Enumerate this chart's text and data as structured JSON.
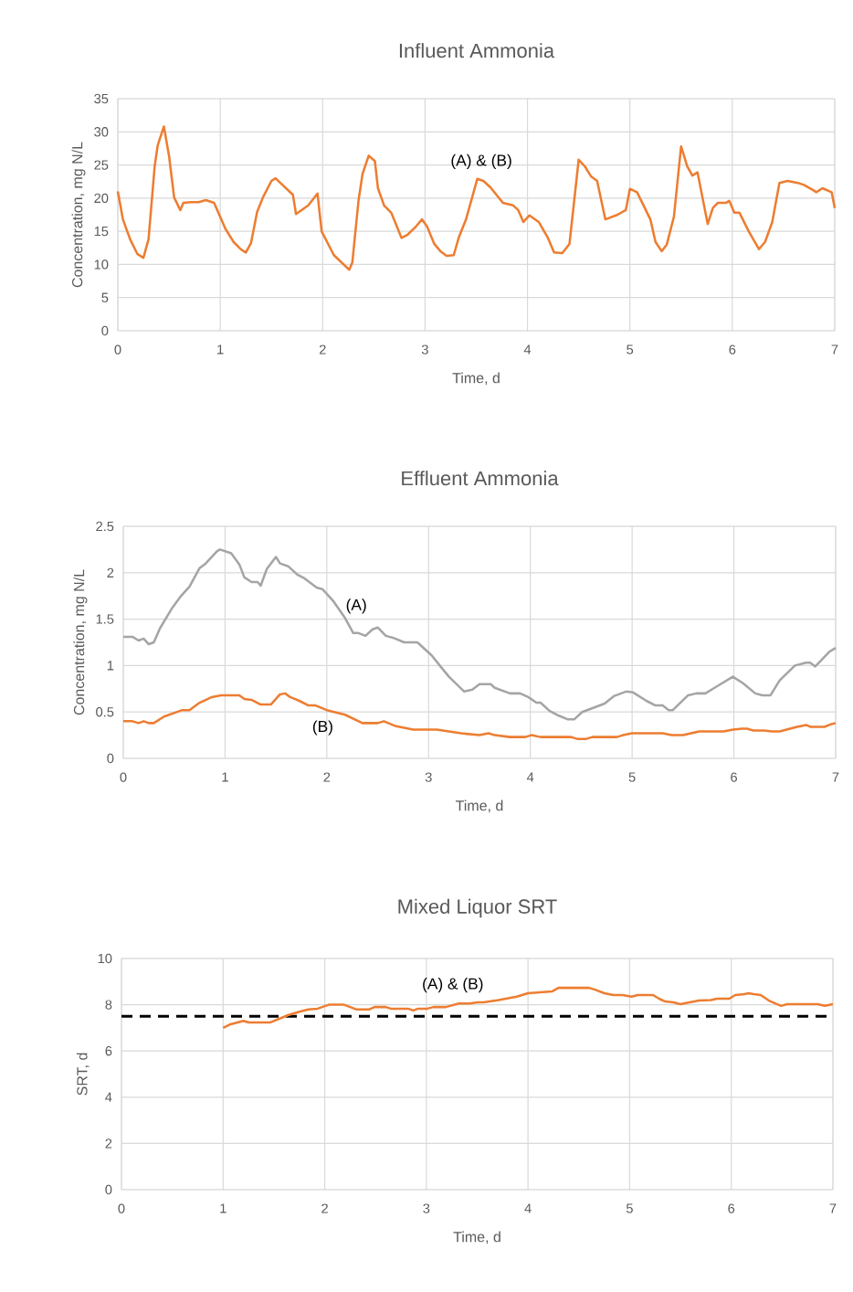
{
  "chart_data": [
    {
      "type": "line",
      "title": "Influent Ammonia",
      "xlabel": "Time, d",
      "ylabel": "Concentration, mg N/L",
      "xlim": [
        0,
        7
      ],
      "ylim": [
        0,
        35
      ],
      "xticks": [
        0,
        1,
        2,
        3,
        4,
        5,
        6,
        7
      ],
      "yticks": [
        0,
        5,
        10,
        15,
        20,
        25,
        30,
        35
      ],
      "grid": true,
      "series": [
        {
          "name": "(A)  & (B)",
          "color": "#ed7d31",
          "x": [
            0,
            0.05,
            0.12,
            0.19,
            0.25,
            0.3,
            0.36,
            0.39,
            0.45,
            0.5,
            0.55,
            0.61,
            0.64,
            0.71,
            0.79,
            0.86,
            0.94,
            1.05,
            1.13,
            1.2,
            1.25,
            1.3,
            1.36,
            1.42,
            1.5,
            1.54,
            1.71,
            1.74,
            1.86,
            1.95,
            1.99,
            2.11,
            2.26,
            2.29,
            2.35,
            2.39,
            2.45,
            2.51,
            2.54,
            2.6,
            2.67,
            2.71,
            2.77,
            2.83,
            2.91,
            2.97,
            3.02,
            3.09,
            3.15,
            3.21,
            3.28,
            3.33,
            3.4,
            3.51,
            3.57,
            3.64,
            3.76,
            3.86,
            3.91,
            3.96,
            4.02,
            4.11,
            4.2,
            4.26,
            4.34,
            4.41,
            4.5,
            4.56,
            4.62,
            4.68,
            4.76,
            4.88,
            4.96,
            5.0,
            5.07,
            5.2,
            5.25,
            5.31,
            5.36,
            5.43,
            5.5,
            5.56,
            5.61,
            5.66,
            5.76,
            5.81,
            5.86,
            5.94,
            5.97,
            6.02,
            6.07,
            6.16,
            6.26,
            6.32,
            6.39,
            6.46,
            6.54,
            6.64,
            6.7,
            6.79,
            6.82,
            6.88,
            6.97,
            7.0
          ],
          "values": [
            21,
            16.8,
            13.8,
            11.6,
            11,
            13.8,
            24.8,
            28,
            30.8,
            26.4,
            20.1,
            18.2,
            19.3,
            19.4,
            19.4,
            19.7,
            19.3,
            15.4,
            13.4,
            12.3,
            11.8,
            13.2,
            17.9,
            20.2,
            22.6,
            23,
            20.5,
            17.6,
            18.9,
            20.7,
            15,
            11.4,
            9.2,
            10.3,
            19.6,
            23.7,
            26.4,
            25.6,
            21.5,
            18.9,
            17.8,
            16.3,
            14,
            14.5,
            15.7,
            16.8,
            15.7,
            13.1,
            12,
            11.3,
            11.4,
            14.1,
            16.8,
            22.9,
            22.6,
            21.6,
            19.3,
            18.9,
            18.2,
            16.4,
            17.4,
            16.4,
            14,
            11.8,
            11.7,
            13.1,
            25.8,
            24.8,
            23.3,
            22.6,
            16.8,
            17.5,
            18.2,
            21.4,
            20.9,
            16.8,
            13.4,
            12,
            13,
            17.2,
            27.8,
            24.8,
            23.4,
            23.9,
            16.1,
            18.5,
            19.3,
            19.3,
            19.6,
            17.8,
            17.8,
            15,
            12.3,
            13.4,
            16.4,
            22.3,
            22.6,
            22.3,
            22,
            21.2,
            20.9,
            21.5,
            20.9,
            18.5
          ]
        }
      ]
    },
    {
      "type": "line",
      "title": "Effluent Ammonia",
      "xlabel": "Time, d",
      "ylabel": "Concentration, mg N/L",
      "xlim": [
        0,
        7
      ],
      "ylim": [
        0,
        2.5
      ],
      "xticks": [
        0,
        1,
        2,
        3,
        4,
        5,
        6,
        7
      ],
      "yticks": [
        0,
        0.5,
        1,
        1.5,
        2,
        2.5
      ],
      "grid": true,
      "series": [
        {
          "name": "(A)",
          "color": "#a5a5a5",
          "x": [
            0,
            0.09,
            0.15,
            0.2,
            0.25,
            0.3,
            0.36,
            0.48,
            0.56,
            0.65,
            0.75,
            0.81,
            0.92,
            0.95,
            1.06,
            1.14,
            1.19,
            1.26,
            1.32,
            1.35,
            1.41,
            1.5,
            1.54,
            1.62,
            1.71,
            1.78,
            1.9,
            1.96,
            2.06,
            2.18,
            2.26,
            2.31,
            2.38,
            2.45,
            2.5,
            2.58,
            2.65,
            2.76,
            2.89,
            3.03,
            3.11,
            3.2,
            3.35,
            3.43,
            3.5,
            3.61,
            3.65,
            3.8,
            3.9,
            3.98,
            4.06,
            4.1,
            4.19,
            4.28,
            4.37,
            4.43,
            4.51,
            4.73,
            4.82,
            4.94,
            5.01,
            5.14,
            5.23,
            5.3,
            5.36,
            5.4,
            5.55,
            5.63,
            5.72,
            5.81,
            5.9,
            5.99,
            6.09,
            6.21,
            6.28,
            6.36,
            6.45,
            6.6,
            6.71,
            6.75,
            6.8,
            6.94,
            7.0
          ],
          "values": [
            1.31,
            1.31,
            1.27,
            1.29,
            1.23,
            1.25,
            1.4,
            1.62,
            1.74,
            1.85,
            2.05,
            2.1,
            2.23,
            2.25,
            2.21,
            2.09,
            1.95,
            1.9,
            1.9,
            1.86,
            2.04,
            2.17,
            2.1,
            2.07,
            1.98,
            1.94,
            1.84,
            1.82,
            1.7,
            1.51,
            1.35,
            1.35,
            1.32,
            1.39,
            1.41,
            1.32,
            1.3,
            1.25,
            1.25,
            1.11,
            1.0,
            0.88,
            0.72,
            0.74,
            0.8,
            0.8,
            0.76,
            0.7,
            0.7,
            0.66,
            0.6,
            0.6,
            0.51,
            0.46,
            0.42,
            0.42,
            0.5,
            0.59,
            0.67,
            0.72,
            0.71,
            0.62,
            0.57,
            0.57,
            0.52,
            0.52,
            0.68,
            0.7,
            0.7,
            0.76,
            0.82,
            0.88,
            0.81,
            0.7,
            0.68,
            0.68,
            0.84,
            1.0,
            1.03,
            1.03,
            0.99,
            1.15,
            1.19
          ]
        },
        {
          "name": "(B)",
          "color": "#ed7d31",
          "x": [
            0,
            0.09,
            0.15,
            0.2,
            0.25,
            0.3,
            0.4,
            0.58,
            0.65,
            0.75,
            0.87,
            0.96,
            1.14,
            1.19,
            1.26,
            1.35,
            1.45,
            1.54,
            1.59,
            1.64,
            1.73,
            1.82,
            1.89,
            2.0,
            2.18,
            2.35,
            2.5,
            2.56,
            2.67,
            2.85,
            3.08,
            3.32,
            3.5,
            3.59,
            3.65,
            3.8,
            3.95,
            4.01,
            4.1,
            4.4,
            4.46,
            4.55,
            4.61,
            4.85,
            4.91,
            5.0,
            5.3,
            5.39,
            5.5,
            5.66,
            5.9,
            5.99,
            6.08,
            6.13,
            6.19,
            6.3,
            6.37,
            6.45,
            6.62,
            6.71,
            6.75,
            6.89,
            6.96,
            7.0
          ],
          "values": [
            0.4,
            0.4,
            0.38,
            0.4,
            0.38,
            0.38,
            0.45,
            0.52,
            0.52,
            0.6,
            0.66,
            0.68,
            0.68,
            0.64,
            0.63,
            0.58,
            0.58,
            0.69,
            0.7,
            0.66,
            0.62,
            0.57,
            0.57,
            0.52,
            0.47,
            0.38,
            0.38,
            0.4,
            0.35,
            0.31,
            0.31,
            0.27,
            0.25,
            0.27,
            0.25,
            0.23,
            0.23,
            0.25,
            0.23,
            0.23,
            0.21,
            0.21,
            0.23,
            0.23,
            0.25,
            0.27,
            0.27,
            0.25,
            0.25,
            0.29,
            0.29,
            0.31,
            0.32,
            0.32,
            0.3,
            0.3,
            0.29,
            0.29,
            0.34,
            0.36,
            0.34,
            0.34,
            0.37,
            0.38
          ]
        }
      ]
    },
    {
      "type": "line",
      "title": "Mixed Liquor SRT",
      "xlabel": "Time, d",
      "ylabel": "SRT, d",
      "xlim": [
        0,
        7
      ],
      "ylim": [
        0,
        10
      ],
      "xticks": [
        0,
        1,
        2,
        3,
        4,
        5,
        6,
        7
      ],
      "yticks": [
        0,
        2,
        4,
        6,
        8,
        10
      ],
      "grid": true,
      "ref_lines": [
        {
          "axis": "y",
          "value": 7.5,
          "color": "#000000",
          "line_style": "dashed"
        }
      ],
      "series": [
        {
          "name": "(A)  & (B)",
          "color": "#ed7d31",
          "x": [
            1.0,
            1.07,
            1.2,
            1.25,
            1.46,
            1.64,
            1.75,
            1.84,
            1.93,
            2.04,
            2.19,
            2.31,
            2.44,
            2.49,
            2.6,
            2.65,
            2.82,
            2.87,
            2.92,
            3.01,
            3.07,
            3.19,
            3.32,
            3.43,
            3.5,
            3.56,
            3.71,
            3.89,
            4.0,
            4.24,
            4.3,
            4.6,
            4.66,
            4.75,
            4.84,
            4.93,
            5.02,
            5.08,
            5.23,
            5.29,
            5.35,
            5.43,
            5.5,
            5.59,
            5.68,
            5.8,
            5.86,
            5.98,
            6.04,
            6.13,
            6.17,
            6.22,
            6.29,
            6.37,
            6.49,
            6.55,
            6.85,
            6.92,
            7.0
          ],
          "values": [
            7.0,
            7.15,
            7.3,
            7.23,
            7.23,
            7.55,
            7.7,
            7.8,
            7.83,
            8.0,
            8.0,
            7.8,
            7.8,
            7.9,
            7.9,
            7.83,
            7.83,
            7.75,
            7.83,
            7.83,
            7.9,
            7.9,
            8.05,
            8.05,
            8.1,
            8.1,
            8.2,
            8.35,
            8.5,
            8.58,
            8.73,
            8.73,
            8.65,
            8.5,
            8.42,
            8.42,
            8.35,
            8.42,
            8.42,
            8.26,
            8.14,
            8.1,
            8.02,
            8.1,
            8.18,
            8.2,
            8.26,
            8.26,
            8.42,
            8.46,
            8.5,
            8.46,
            8.42,
            8.18,
            7.95,
            8.02,
            8.02,
            7.95,
            8.02
          ]
        }
      ]
    }
  ]
}
